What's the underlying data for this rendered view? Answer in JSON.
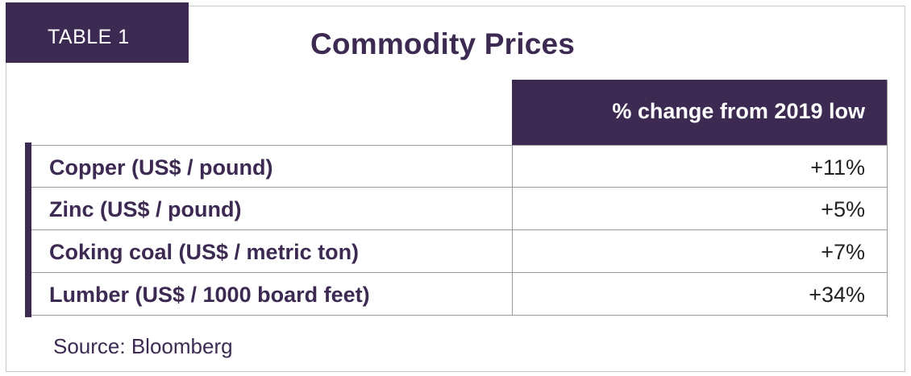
{
  "label": "TABLE 1",
  "title": "Commodity Prices",
  "table": {
    "column_header": "% change from 2019 low",
    "rows": [
      {
        "name": "Copper (US$ / pound)",
        "value": "+11%"
      },
      {
        "name": "Zinc (US$ / pound)",
        "value": "+5%"
      },
      {
        "name": "Coking coal (US$ / metric ton)",
        "value": "+7%"
      },
      {
        "name": "Lumber (US$ / 1000 board feet)",
        "value": "+34%"
      }
    ]
  },
  "source": "Source: Bloomberg",
  "colors": {
    "accent": "#3d2a52",
    "header_text": "#ffffff"
  }
}
